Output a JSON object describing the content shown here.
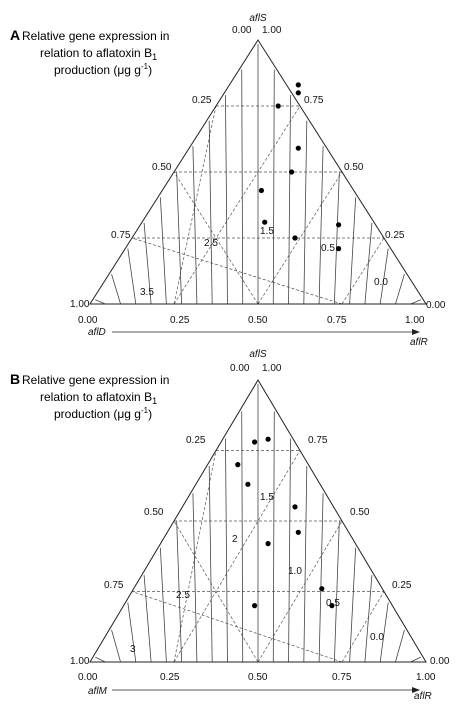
{
  "chart_data": [
    {
      "type": "ternary-contour",
      "panel_letter": "A",
      "caption_lines": [
        "Relative gene expression in",
        "relation to aflatoxin B",
        "production (μg g"
      ],
      "caption_sub": "1",
      "caption_unit_sup": "-1",
      "caption_close": ")",
      "top_axis_label": "aflS",
      "left_axis_label": "aflD",
      "right_axis_label": "aflR",
      "top_vertex_label": "0.00",
      "top_vertex_label_right": "1.00",
      "left_vertex_value": "1.00",
      "right_vertex_value": "0.00",
      "left_side_ticks": [
        "0.25",
        "0.50",
        "0.75"
      ],
      "right_side_ticks": [
        "0.75",
        "0.50",
        "0.25"
      ],
      "bottom_ticks": [
        "0.00",
        "0.25",
        "0.50",
        "0.75",
        "1.00"
      ],
      "contour_labels": [
        "3.5",
        "2.5",
        "1.5",
        "0.5",
        "0.0"
      ],
      "points": [
        {
          "x": 0.62,
          "y": 0.83
        },
        {
          "x": 0.62,
          "y": 0.8
        },
        {
          "x": 0.56,
          "y": 0.75
        },
        {
          "x": 0.62,
          "y": 0.59
        },
        {
          "x": 0.6,
          "y": 0.5
        },
        {
          "x": 0.51,
          "y": 0.43
        },
        {
          "x": 0.52,
          "y": 0.31
        },
        {
          "x": 0.61,
          "y": 0.25
        },
        {
          "x": 0.74,
          "y": 0.3
        },
        {
          "x": 0.74,
          "y": 0.21
        }
      ]
    },
    {
      "type": "ternary-contour",
      "panel_letter": "B",
      "caption_lines": [
        "Relative gene expression in",
        "relation to aflatoxin B",
        "production (μg g"
      ],
      "caption_sub": "1",
      "caption_unit_sup": "-1",
      "caption_close": ")",
      "top_axis_label": "aflS",
      "left_axis_label": "aflM",
      "right_axis_label": "aflR",
      "top_vertex_label": "0.00",
      "top_vertex_label_right": "1.00",
      "left_vertex_value": "1.00",
      "right_vertex_value": "0.00",
      "left_side_ticks": [
        "0.25",
        "0.50",
        "0.75"
      ],
      "right_side_ticks": [
        "0.75",
        "0.50",
        "0.25"
      ],
      "bottom_ticks": [
        "0.00",
        "0.25",
        "0.50",
        "0.75",
        "1.00"
      ],
      "contour_labels": [
        "3",
        "2.5",
        "2",
        "1.5",
        "1.0",
        "0.5",
        "0.0"
      ],
      "points": [
        {
          "x": 0.53,
          "y": 0.79
        },
        {
          "x": 0.49,
          "y": 0.78
        },
        {
          "x": 0.44,
          "y": 0.7
        },
        {
          "x": 0.47,
          "y": 0.63
        },
        {
          "x": 0.61,
          "y": 0.55
        },
        {
          "x": 0.53,
          "y": 0.42
        },
        {
          "x": 0.62,
          "y": 0.46
        },
        {
          "x": 0.69,
          "y": 0.26
        },
        {
          "x": 0.72,
          "y": 0.2
        },
        {
          "x": 0.49,
          "y": 0.2
        }
      ]
    }
  ]
}
